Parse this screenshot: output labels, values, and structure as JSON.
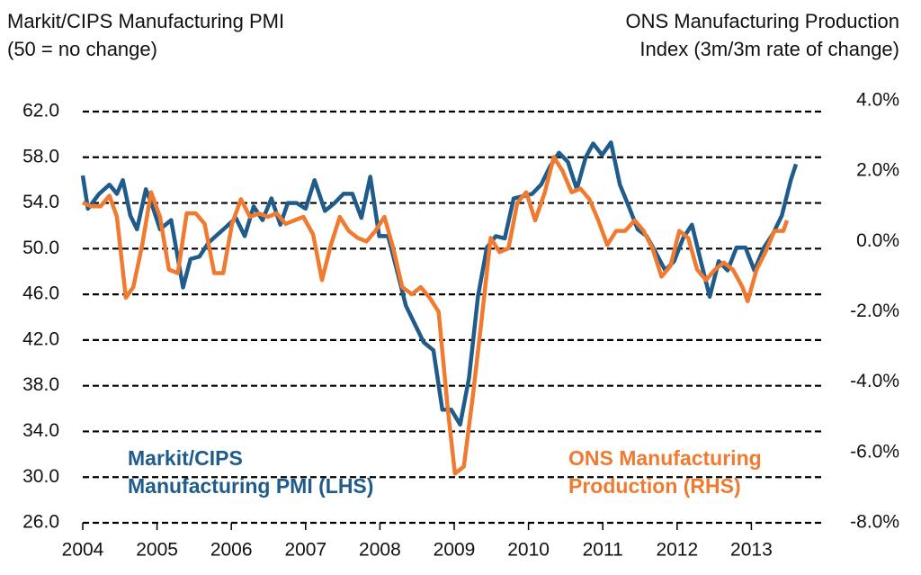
{
  "chart_data": {
    "type": "line",
    "title": "Markit/CIPS Manufacturing PMI\n(50 = no change)",
    "subtitle": "ONS Manufacturing Production\nIndex (3m/3m rate of change)",
    "xlim": [
      2004,
      2014
    ],
    "xticks": [
      2004,
      2005,
      2006,
      2007,
      2008,
      2009,
      2010,
      2011,
      2012,
      2013
    ],
    "ylim": [
      26,
      62
    ],
    "yticks": [
      {
        "value": 26,
        "label": "26.0"
      },
      {
        "value": 30,
        "label": "30.0"
      },
      {
        "value": 34,
        "label": "34.0"
      },
      {
        "value": 38,
        "label": "38.0"
      },
      {
        "value": 42,
        "label": "42.0"
      },
      {
        "value": 46,
        "label": "46.0"
      },
      {
        "value": 50,
        "label": "50.0"
      },
      {
        "value": 54,
        "label": "54.0"
      },
      {
        "value": 58,
        "label": "58.0"
      },
      {
        "value": 62,
        "label": "62.0"
      }
    ],
    "y2lim": [
      -8,
      4
    ],
    "y2ticks": [
      {
        "value": -8,
        "label": "-8.0%"
      },
      {
        "value": -6,
        "label": "-6.0%"
      },
      {
        "value": -4,
        "label": "-4.0%"
      },
      {
        "value": -2,
        "label": "-2.0%"
      },
      {
        "value": 0,
        "label": "0.0%"
      },
      {
        "value": 2,
        "label": "2.0%"
      },
      {
        "value": 4,
        "label": "4.0%"
      }
    ],
    "grid": true,
    "series": [
      {
        "name": "Markit/CIPS\nManufacturing PMI (LHS)",
        "color": "#1f5c8c",
        "axis": "y",
        "x": [
          2004.0,
          2004.07,
          2004.22,
          2004.36,
          2004.46,
          2004.54,
          2004.64,
          2004.73,
          2004.85,
          2004.94,
          2005.04,
          2005.19,
          2005.35,
          2005.45,
          2005.57,
          2005.69,
          2005.79,
          2005.93,
          2006.06,
          2006.18,
          2006.3,
          2006.42,
          2006.54,
          2006.66,
          2006.76,
          2006.88,
          2007.0,
          2007.12,
          2007.26,
          2007.39,
          2007.51,
          2007.63,
          2007.75,
          2007.87,
          2007.99,
          2008.11,
          2008.23,
          2008.35,
          2008.47,
          2008.59,
          2008.72,
          2008.84,
          2008.96,
          2009.08,
          2009.2,
          2009.32,
          2009.44,
          2009.56,
          2009.68,
          2009.8,
          2009.93,
          2010.05,
          2010.17,
          2010.29,
          2010.41,
          2010.53,
          2010.65,
          2010.77,
          2010.87,
          2010.99,
          2011.11,
          2011.23,
          2011.35,
          2011.47,
          2011.59,
          2011.71,
          2011.84,
          2011.96,
          2012.08,
          2012.2,
          2012.32,
          2012.44,
          2012.56,
          2012.68,
          2012.8,
          2012.92,
          2013.04,
          2013.17,
          2013.29,
          2013.41,
          2013.53,
          2013.6
        ],
        "values": [
          56.4,
          53.5,
          54.8,
          55.6,
          54.8,
          56.0,
          52.9,
          51.7,
          55.2,
          53.7,
          51.7,
          52.5,
          46.6,
          49.1,
          49.3,
          50.5,
          51.1,
          51.9,
          52.7,
          51.1,
          53.7,
          52.5,
          54.4,
          52.1,
          54.0,
          54.0,
          53.5,
          56.0,
          53.3,
          54.0,
          54.8,
          54.8,
          52.7,
          56.3,
          51.1,
          51.1,
          48.1,
          45.0,
          43.4,
          41.8,
          41.1,
          35.9,
          35.9,
          34.6,
          38.7,
          45.8,
          50.1,
          51.1,
          50.9,
          54.4,
          54.6,
          54.8,
          55.6,
          57.2,
          58.4,
          57.6,
          55.2,
          58.0,
          59.2,
          58.2,
          59.3,
          55.6,
          53.7,
          51.7,
          51.1,
          49.7,
          48.1,
          48.9,
          50.9,
          52.1,
          48.9,
          45.8,
          48.9,
          48.1,
          50.1,
          50.1,
          48.1,
          50.1,
          51.3,
          52.9,
          56.0,
          57.4
        ]
      },
      {
        "name": "ONS Manufacturing\nProduction (RHS)",
        "color": "#f07b30",
        "axis": "y2",
        "x": [
          2004.0,
          2004.12,
          2004.24,
          2004.36,
          2004.46,
          2004.58,
          2004.68,
          2004.8,
          2004.92,
          2005.04,
          2005.16,
          2005.28,
          2005.4,
          2005.52,
          2005.64,
          2005.77,
          2005.89,
          2006.01,
          2006.13,
          2006.25,
          2006.37,
          2006.49,
          2006.61,
          2006.73,
          2006.85,
          2006.97,
          2007.1,
          2007.22,
          2007.34,
          2007.46,
          2007.58,
          2007.7,
          2007.82,
          2007.94,
          2008.06,
          2008.18,
          2008.3,
          2008.43,
          2008.55,
          2008.67,
          2008.79,
          2008.91,
          2009.01,
          2009.13,
          2009.25,
          2009.37,
          2009.49,
          2009.61,
          2009.73,
          2009.85,
          2009.97,
          2010.09,
          2010.22,
          2010.34,
          2010.46,
          2010.58,
          2010.7,
          2010.82,
          2010.94,
          2011.06,
          2011.18,
          2011.3,
          2011.43,
          2011.55,
          2011.67,
          2011.79,
          2011.91,
          2012.03,
          2012.15,
          2012.27,
          2012.39,
          2012.51,
          2012.63,
          2012.75,
          2012.88,
          2012.95,
          2013.07,
          2013.19,
          2013.31,
          2013.43,
          2013.48
        ],
        "values": [
          1.1,
          1.0,
          1.0,
          1.3,
          0.7,
          -1.6,
          -1.3,
          -0.1,
          1.4,
          0.7,
          -0.8,
          -0.9,
          0.8,
          0.8,
          0.5,
          -0.9,
          -0.9,
          0.5,
          1.2,
          0.7,
          0.8,
          0.7,
          0.8,
          0.5,
          0.6,
          0.7,
          0.2,
          -1.1,
          -0.1,
          0.7,
          0.3,
          0.1,
          0.0,
          0.3,
          0.7,
          -0.2,
          -1.3,
          -1.5,
          -1.3,
          -1.6,
          -2.0,
          -4.7,
          -6.6,
          -6.4,
          -4.4,
          -2.2,
          0.1,
          -0.3,
          -0.2,
          1.1,
          1.4,
          0.6,
          1.4,
          2.4,
          2.0,
          1.4,
          1.5,
          1.2,
          0.6,
          -0.1,
          0.3,
          0.3,
          0.6,
          0.3,
          -0.2,
          -1.0,
          -0.7,
          0.3,
          0.1,
          -0.8,
          -1.1,
          -0.8,
          -0.6,
          -0.8,
          -1.3,
          -1.7,
          -0.8,
          -0.3,
          0.3,
          0.3,
          0.6
        ]
      }
    ]
  }
}
